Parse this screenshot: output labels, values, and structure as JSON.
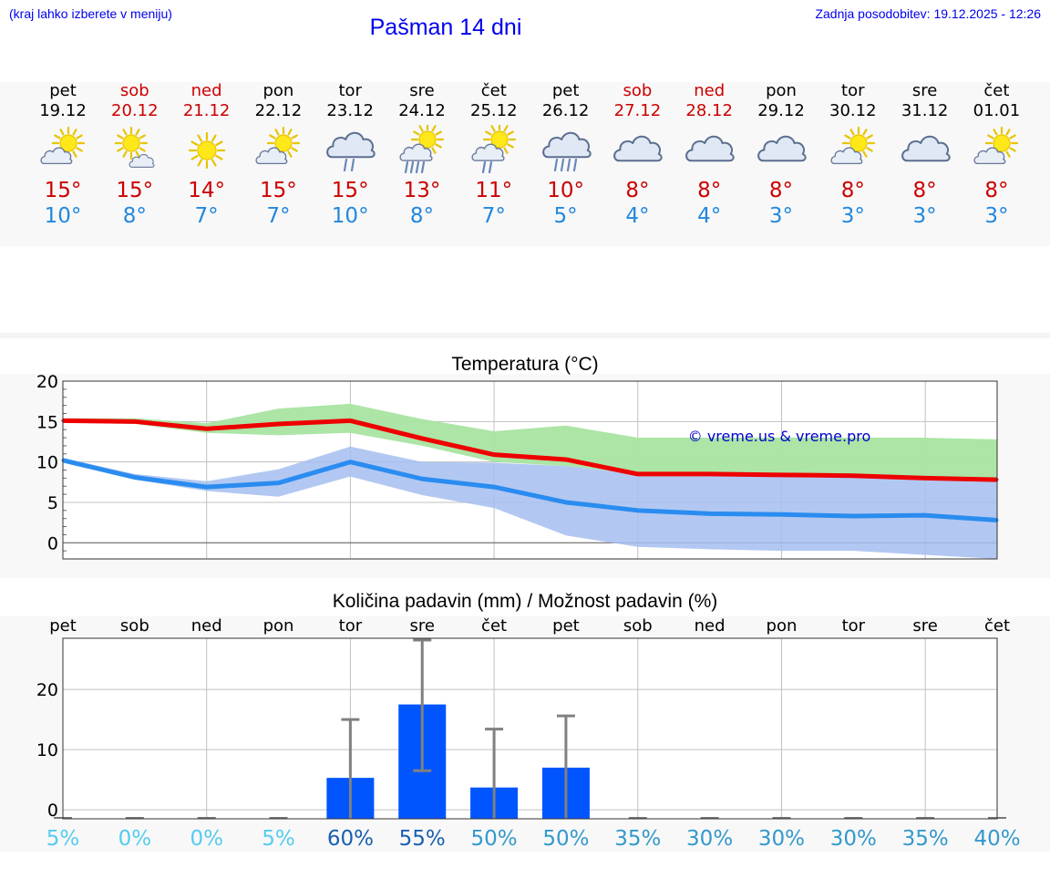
{
  "header": {
    "menu_note": "(kraj lahko izberete v meniju)",
    "title": "Pašman 14 dni",
    "updated": "Zadnja posodobitev: 19.12.2025 - 12:26"
  },
  "forecast": {
    "days": [
      {
        "name": "pet",
        "date": "19.12",
        "weekend": false,
        "icon": "partly-sunny-icon",
        "max": "15°",
        "min": "10°"
      },
      {
        "name": "sob",
        "date": "20.12",
        "weekend": true,
        "icon": "sun-small-cloud-icon",
        "max": "15°",
        "min": "8°"
      },
      {
        "name": "ned",
        "date": "21.12",
        "weekend": true,
        "icon": "sun-icon",
        "max": "14°",
        "min": "7°"
      },
      {
        "name": "pon",
        "date": "22.12",
        "weekend": false,
        "icon": "partly-sunny-icon",
        "max": "15°",
        "min": "7°"
      },
      {
        "name": "tor",
        "date": "23.12",
        "weekend": false,
        "icon": "cloud-rain-icon",
        "max": "15°",
        "min": "10°"
      },
      {
        "name": "sre",
        "date": "24.12",
        "weekend": false,
        "icon": "sun-cloud-heavy-rain-icon",
        "max": "13°",
        "min": "8°"
      },
      {
        "name": "čet",
        "date": "25.12",
        "weekend": false,
        "icon": "sun-cloud-rain-icon",
        "max": "11°",
        "min": "7°"
      },
      {
        "name": "pet",
        "date": "26.12",
        "weekend": false,
        "icon": "cloud-heavy-rain-icon",
        "max": "10°",
        "min": "5°"
      },
      {
        "name": "sob",
        "date": "27.12",
        "weekend": true,
        "icon": "cloudy-icon",
        "max": "8°",
        "min": "4°"
      },
      {
        "name": "ned",
        "date": "28.12",
        "weekend": true,
        "icon": "cloudy-icon",
        "max": "8°",
        "min": "4°"
      },
      {
        "name": "pon",
        "date": "29.12",
        "weekend": false,
        "icon": "cloudy-icon",
        "max": "8°",
        "min": "3°"
      },
      {
        "name": "tor",
        "date": "30.12",
        "weekend": false,
        "icon": "partly-sunny-icon",
        "max": "8°",
        "min": "3°"
      },
      {
        "name": "sre",
        "date": "31.12",
        "weekend": false,
        "icon": "cloudy-icon",
        "max": "8°",
        "min": "3°"
      },
      {
        "name": "čet",
        "date": "01.01",
        "weekend": false,
        "icon": "partly-sunny-icon",
        "max": "8°",
        "min": "3°"
      }
    ]
  },
  "colors": {
    "max_line": "#ee0000",
    "min_line": "#2a8cf0",
    "max_band": "#a8e4a0",
    "min_band": "#a4bef0",
    "bar": "#0055ff",
    "whisker": "#808080",
    "grid": "#c0c0c0",
    "weekend": "#cc0000",
    "link": "#0000ee",
    "pct_low": "#55ccee",
    "pct_mid": "#3399cc",
    "pct_high": "#1a5fb0"
  },
  "chart_data": [
    {
      "type": "line",
      "title": "Temperatura (°C)",
      "watermark": "© vreme.us & vreme.pro",
      "ylim": [
        -2,
        20
      ],
      "yticks": [
        0,
        5,
        10,
        15,
        20
      ],
      "x": [
        0,
        1,
        2,
        3,
        4,
        5,
        6,
        7,
        8,
        9,
        10,
        11,
        12,
        13
      ],
      "series": [
        {
          "name": "max",
          "values": [
            15.1,
            15.0,
            14.1,
            14.7,
            15.1,
            12.9,
            10.9,
            10.3,
            8.5,
            8.5,
            8.4,
            8.3,
            8.0,
            7.8
          ],
          "band_lo": [
            15.0,
            14.7,
            13.6,
            13.3,
            13.6,
            12.0,
            10.0,
            9.5,
            8.5,
            8.5,
            8.5,
            8.5,
            8.0,
            7.8
          ],
          "band_hi": [
            15.4,
            15.4,
            14.8,
            16.6,
            17.2,
            15.3,
            13.8,
            14.5,
            13.0,
            13.0,
            13.0,
            13.0,
            13.0,
            12.8
          ]
        },
        {
          "name": "min",
          "values": [
            10.2,
            8.1,
            6.9,
            7.4,
            10.0,
            7.9,
            6.9,
            5.0,
            4.0,
            3.6,
            3.5,
            3.3,
            3.4,
            2.8
          ],
          "band_lo": [
            10.0,
            7.8,
            6.4,
            5.7,
            8.2,
            5.9,
            4.3,
            0.9,
            -0.5,
            -0.8,
            -1.0,
            -1.0,
            -1.5,
            -2.0
          ],
          "band_hi": [
            10.5,
            8.5,
            7.6,
            9.1,
            11.9,
            10.0,
            9.9,
            9.5,
            8.5,
            8.5,
            8.5,
            8.5,
            8.0,
            7.8
          ]
        }
      ]
    },
    {
      "type": "bar",
      "title": "Količina padavin (mm) / Možnost padavin (%)",
      "categories": [
        "pet",
        "sob",
        "ned",
        "pon",
        "tor",
        "sre",
        "čet",
        "pet",
        "sob",
        "ned",
        "pon",
        "tor",
        "sre",
        "čet"
      ],
      "ylim": [
        -1.5,
        28.5
      ],
      "yticks": [
        0,
        10,
        20
      ],
      "values": [
        0,
        0,
        0,
        0,
        5.3,
        17.5,
        3.7,
        7.0,
        0,
        0,
        0,
        0,
        0,
        0
      ],
      "error_hi": [
        0,
        0,
        0,
        0,
        15.0,
        28.2,
        13.4,
        15.6,
        0,
        0,
        0,
        0,
        0,
        0
      ],
      "error_lo": [
        0,
        0,
        0,
        0,
        0,
        6.5,
        0,
        0,
        0,
        0,
        0,
        0,
        0,
        0
      ],
      "probability": [
        "5%",
        "0%",
        "0%",
        "5%",
        "60%",
        "55%",
        "50%",
        "50%",
        "35%",
        "30%",
        "30%",
        "30%",
        "35%",
        "40%"
      ]
    }
  ]
}
